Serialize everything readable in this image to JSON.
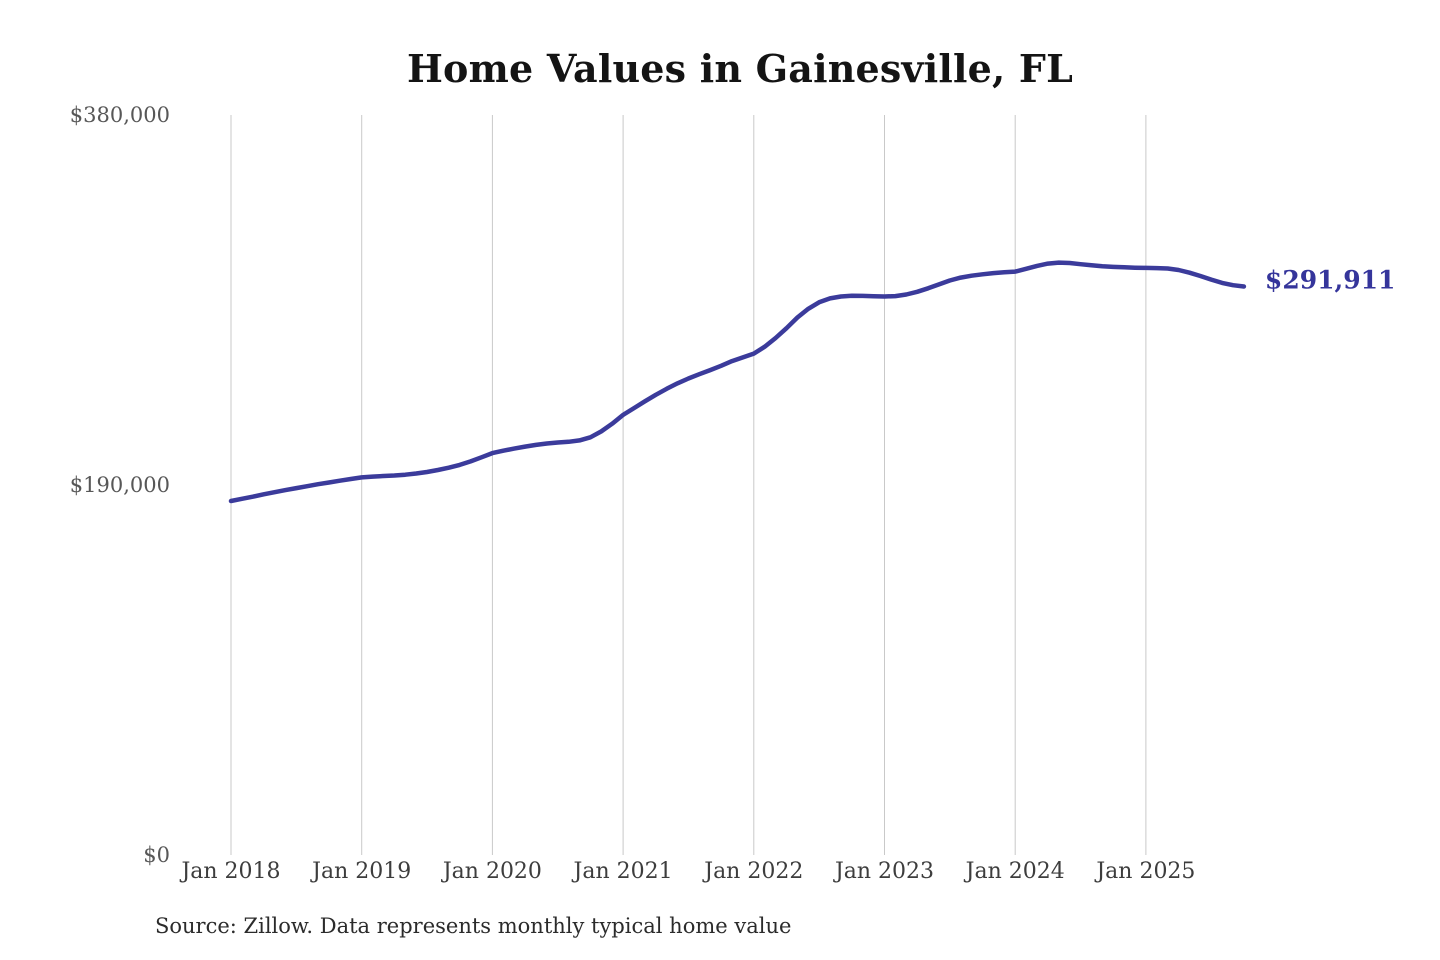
{
  "chart": {
    "title": "Home Values in Gainesville, FL",
    "end_label": "$291,911",
    "source": "Source: Zillow. Data represents monthly typical home value"
  },
  "chart_data": {
    "type": "line",
    "title": "Home Values in Gainesville, FL",
    "series_name": "Monthly typical home value",
    "unit": "USD",
    "source": "Zillow",
    "legend": "none",
    "gridlines": "vertical-only",
    "line_color": "#3b3b9b",
    "label_color": "#35359b",
    "grid_color": "#c9c9c9",
    "ylim": [
      0,
      380000
    ],
    "y_ticks": [
      380000,
      190000,
      0
    ],
    "y_tick_labels": [
      "$380,000",
      "$190,000",
      "$0"
    ],
    "x_tick_labels": [
      "Jan 2018",
      "Jan 2019",
      "Jan 2020",
      "Jan 2021",
      "Jan 2022",
      "Jan 2023",
      "Jan 2024",
      "Jan 2025"
    ],
    "last_value": 291911,
    "last_value_label": "$291,911",
    "x": [
      "2018-01",
      "2018-02",
      "2018-03",
      "2018-04",
      "2018-05",
      "2018-06",
      "2018-07",
      "2018-08",
      "2018-09",
      "2018-10",
      "2018-11",
      "2018-12",
      "2019-01",
      "2019-02",
      "2019-03",
      "2019-04",
      "2019-05",
      "2019-06",
      "2019-07",
      "2019-08",
      "2019-09",
      "2019-10",
      "2019-11",
      "2019-12",
      "2020-01",
      "2020-02",
      "2020-03",
      "2020-04",
      "2020-05",
      "2020-06",
      "2020-07",
      "2020-08",
      "2020-09",
      "2020-10",
      "2020-11",
      "2020-12",
      "2021-01",
      "2021-02",
      "2021-03",
      "2021-04",
      "2021-05",
      "2021-06",
      "2021-07",
      "2021-08",
      "2021-09",
      "2021-10",
      "2021-11",
      "2021-12",
      "2022-01",
      "2022-02",
      "2022-03",
      "2022-04",
      "2022-05",
      "2022-06",
      "2022-07",
      "2022-08",
      "2022-09",
      "2022-10",
      "2022-11",
      "2022-12",
      "2023-01",
      "2023-02",
      "2023-03",
      "2023-04",
      "2023-05",
      "2023-06",
      "2023-07",
      "2023-08",
      "2023-09",
      "2023-10",
      "2023-11",
      "2023-12",
      "2024-01",
      "2024-02",
      "2024-03",
      "2024-04",
      "2024-05",
      "2024-06",
      "2024-07",
      "2024-08",
      "2024-09",
      "2024-10",
      "2024-11",
      "2024-12",
      "2025-01",
      "2025-02",
      "2025-03",
      "2025-04",
      "2025-05",
      "2025-06",
      "2025-07",
      "2025-08",
      "2025-09",
      "2025-10"
    ],
    "values": [
      181800,
      182900,
      184000,
      185200,
      186300,
      187400,
      188400,
      189400,
      190400,
      191300,
      192200,
      193100,
      193900,
      194300,
      194600,
      194900,
      195300,
      195900,
      196700,
      197700,
      198900,
      200300,
      202100,
      204200,
      206400,
      207600,
      208700,
      209700,
      210600,
      211300,
      211800,
      212200,
      212900,
      214500,
      217500,
      221500,
      226000,
      229500,
      233000,
      236300,
      239400,
      242200,
      244700,
      246900,
      249000,
      251200,
      253600,
      255500,
      257500,
      261000,
      265500,
      270500,
      276000,
      280500,
      283800,
      285800,
      286800,
      287200,
      287100,
      286900,
      286800,
      287000,
      287800,
      289200,
      291000,
      293000,
      295000,
      296500,
      297500,
      298200,
      298800,
      299200,
      299600,
      301000,
      302500,
      303700,
      304200,
      304000,
      303400,
      302800,
      302300,
      302000,
      301800,
      301600,
      301500,
      301400,
      301200,
      300400,
      299000,
      297300,
      295500,
      293800,
      292600,
      291911
    ]
  }
}
